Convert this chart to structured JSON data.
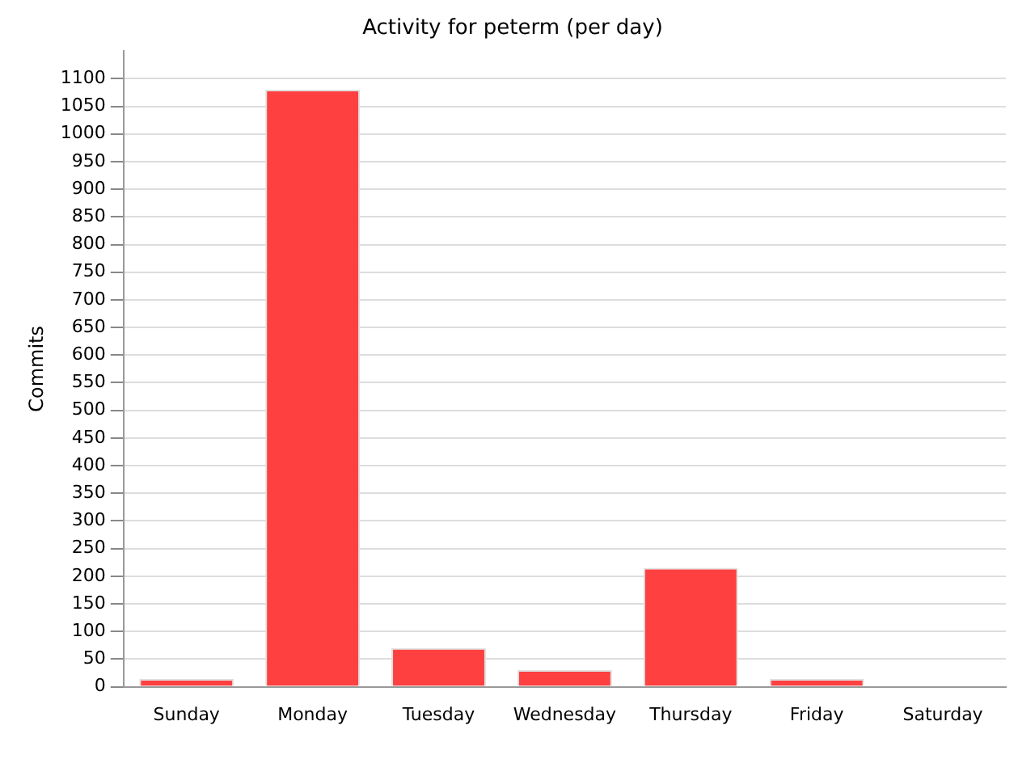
{
  "chart_data": {
    "type": "bar",
    "title": "Activity for peterm (per day)",
    "ylabel": "Commits",
    "categories": [
      "Sunday",
      "Monday",
      "Tuesday",
      "Wednesday",
      "Thursday",
      "Friday",
      "Saturday"
    ],
    "values": [
      14,
      1080,
      70,
      30,
      215,
      14,
      0
    ],
    "color": "#ff4040",
    "ylim": [
      0,
      1150
    ],
    "yticks": [
      0,
      50,
      100,
      150,
      200,
      250,
      300,
      350,
      400,
      450,
      500,
      550,
      600,
      650,
      700,
      750,
      800,
      850,
      900,
      950,
      1000,
      1050,
      1100
    ],
    "grid": "y",
    "legend": false
  }
}
